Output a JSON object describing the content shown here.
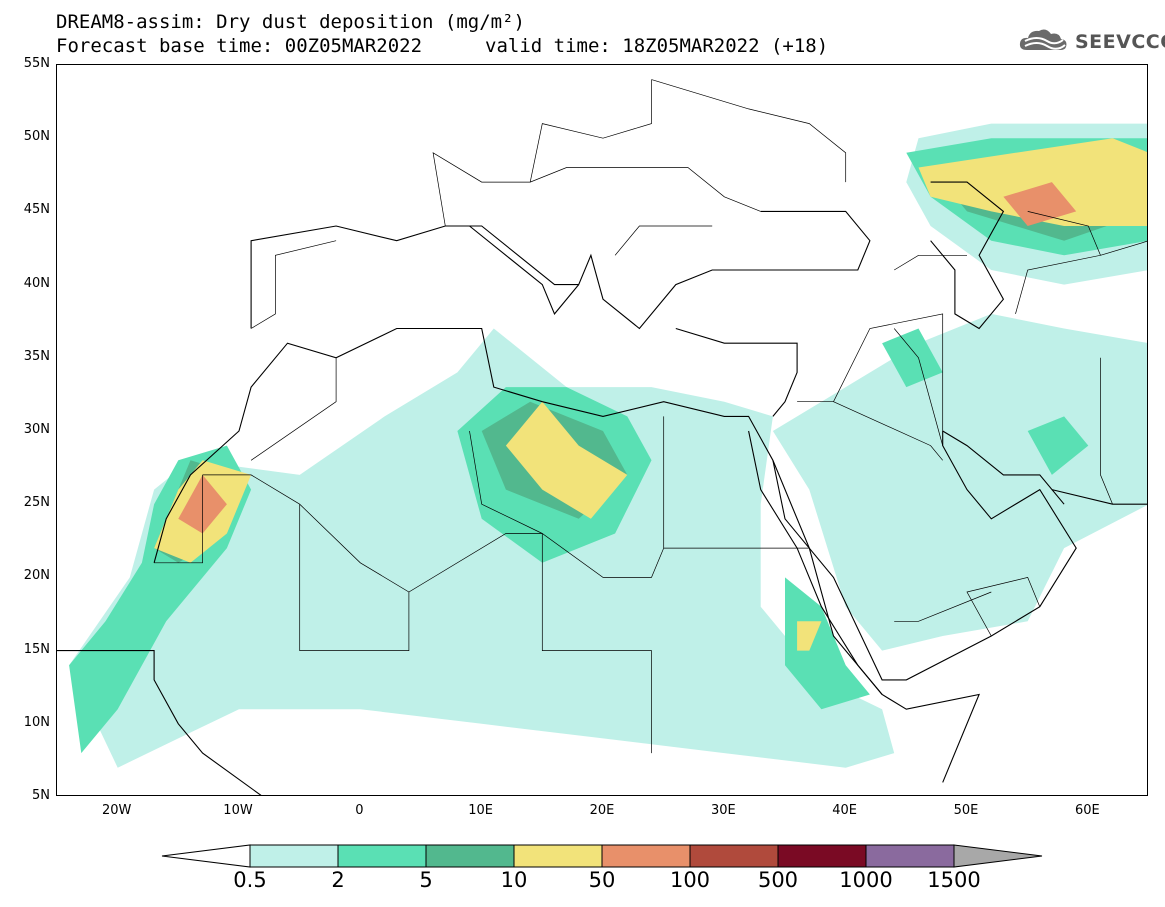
{
  "title": {
    "line1": "DREAM8-assim: Dry dust deposition (mg/m²)",
    "line2": "Forecast base time: 00Z05MAR2022",
    "valid": "valid time: 18Z05MAR2022 (+18)"
  },
  "logo": {
    "text": "SEEVCCC",
    "icon": "cloud-icon"
  },
  "axes": {
    "lat_labels": [
      "55N",
      "50N",
      "45N",
      "40N",
      "35N",
      "30N",
      "25N",
      "20N",
      "15N",
      "10N",
      "5N"
    ],
    "lat_values": [
      55,
      50,
      45,
      40,
      35,
      30,
      25,
      20,
      15,
      10,
      5
    ],
    "lon_labels": [
      "20W",
      "10W",
      "0",
      "10E",
      "20E",
      "30E",
      "40E",
      "50E",
      "60E"
    ],
    "lon_values": [
      -20,
      -10,
      0,
      10,
      20,
      30,
      40,
      50,
      60
    ],
    "lon_range": [
      -25,
      65
    ],
    "lat_range": [
      5,
      55
    ]
  },
  "colorbar": {
    "labels": [
      "0.5",
      "2",
      "5",
      "10",
      "50",
      "100",
      "500",
      "1000",
      "1500"
    ],
    "colors": [
      "#bff0e8",
      "#5ae0b4",
      "#52b88e",
      "#f2e37a",
      "#e8906a",
      "#b04a3c",
      "#7a0a24",
      "#8a6a9e"
    ],
    "extend_low": "#ffffff",
    "extend_high": "#a8a8a8"
  },
  "deposition_regions": [
    {
      "level": 1,
      "color": "#bff0e8",
      "points": [
        [
          -24,
          14
        ],
        [
          -19,
          20
        ],
        [
          -17,
          26
        ],
        [
          -14,
          28
        ],
        [
          -5,
          27
        ],
        [
          2,
          31
        ],
        [
          8,
          34
        ],
        [
          11,
          37
        ],
        [
          17,
          33
        ],
        [
          24,
          33
        ],
        [
          30,
          32
        ],
        [
          34,
          31
        ],
        [
          33,
          25
        ],
        [
          33,
          18
        ],
        [
          38,
          13
        ],
        [
          43,
          11
        ],
        [
          44,
          8
        ],
        [
          40,
          7
        ],
        [
          30,
          8
        ],
        [
          20,
          9
        ],
        [
          10,
          10
        ],
        [
          0,
          11
        ],
        [
          -10,
          11
        ],
        [
          -15,
          9
        ],
        [
          -20,
          7
        ]
      ]
    },
    {
      "level": 1,
      "color": "#bff0e8",
      "points": [
        [
          34,
          30
        ],
        [
          40,
          33
        ],
        [
          46,
          36
        ],
        [
          52,
          38
        ],
        [
          58,
          37
        ],
        [
          65,
          36
        ],
        [
          65,
          25
        ],
        [
          58,
          22
        ],
        [
          55,
          17
        ],
        [
          48,
          16
        ],
        [
          43,
          15
        ],
        [
          40,
          18
        ],
        [
          37,
          26
        ]
      ]
    },
    {
      "level": 1,
      "color": "#bff0e8",
      "points": [
        [
          46,
          50
        ],
        [
          52,
          51
        ],
        [
          58,
          51
        ],
        [
          65,
          51
        ],
        [
          65,
          41
        ],
        [
          58,
          40
        ],
        [
          52,
          41
        ],
        [
          47,
          44
        ],
        [
          45,
          47
        ]
      ]
    },
    {
      "level": 2,
      "color": "#5ae0b4",
      "points": [
        [
          -24,
          14
        ],
        [
          -21,
          17
        ],
        [
          -18,
          21
        ],
        [
          -17,
          25
        ],
        [
          -15,
          28
        ],
        [
          -11,
          29
        ],
        [
          -9,
          26
        ],
        [
          -11,
          22
        ],
        [
          -16,
          17
        ],
        [
          -20,
          11
        ],
        [
          -23,
          8
        ]
      ]
    },
    {
      "level": 2,
      "color": "#5ae0b4",
      "points": [
        [
          8,
          30
        ],
        [
          12,
          33
        ],
        [
          17,
          33
        ],
        [
          22,
          31
        ],
        [
          24,
          28
        ],
        [
          21,
          23
        ],
        [
          15,
          21
        ],
        [
          10,
          24
        ]
      ]
    },
    {
      "level": 2,
      "color": "#5ae0b4",
      "points": [
        [
          35,
          20
        ],
        [
          38,
          18
        ],
        [
          40,
          14
        ],
        [
          42,
          12
        ],
        [
          38,
          11
        ],
        [
          35,
          14
        ]
      ]
    },
    {
      "level": 2,
      "color": "#5ae0b4",
      "points": [
        [
          45,
          49
        ],
        [
          52,
          50
        ],
        [
          60,
          50
        ],
        [
          65,
          50
        ],
        [
          65,
          43
        ],
        [
          58,
          42
        ],
        [
          52,
          43
        ],
        [
          47,
          46
        ]
      ]
    },
    {
      "level": 2,
      "color": "#5ae0b4",
      "points": [
        [
          55,
          30
        ],
        [
          58,
          31
        ],
        [
          60,
          29
        ],
        [
          57,
          27
        ]
      ]
    },
    {
      "level": 2,
      "color": "#5ae0b4",
      "points": [
        [
          43,
          36
        ],
        [
          46,
          37
        ],
        [
          48,
          34
        ],
        [
          45,
          33
        ]
      ]
    },
    {
      "level": 3,
      "color": "#52b88e",
      "points": [
        [
          -17,
          22
        ],
        [
          -14,
          28
        ],
        [
          -10,
          27
        ],
        [
          -11,
          23
        ],
        [
          -15,
          21
        ]
      ]
    },
    {
      "level": 3,
      "color": "#52b88e",
      "points": [
        [
          10,
          30
        ],
        [
          14,
          32
        ],
        [
          20,
          30
        ],
        [
          22,
          27
        ],
        [
          18,
          24
        ],
        [
          12,
          26
        ]
      ]
    },
    {
      "level": 3,
      "color": "#52b88e",
      "points": [
        [
          47,
          48
        ],
        [
          55,
          49
        ],
        [
          62,
          49
        ],
        [
          65,
          48
        ],
        [
          65,
          45
        ],
        [
          58,
          43
        ],
        [
          50,
          45
        ]
      ]
    },
    {
      "level": 4,
      "color": "#f2e37a",
      "points": [
        [
          -17,
          22
        ],
        [
          -15,
          26
        ],
        [
          -13,
          28
        ],
        [
          -9,
          27
        ],
        [
          -11,
          23
        ],
        [
          -14,
          21
        ]
      ]
    },
    {
      "level": 4,
      "color": "#f2e37a",
      "points": [
        [
          13,
          30
        ],
        [
          15,
          32
        ],
        [
          18,
          29
        ],
        [
          22,
          27
        ],
        [
          19,
          24
        ],
        [
          15,
          26
        ],
        [
          12,
          29
        ]
      ]
    },
    {
      "level": 4,
      "color": "#f2e37a",
      "points": [
        [
          36,
          17
        ],
        [
          38,
          17
        ],
        [
          37,
          15
        ],
        [
          36,
          15
        ]
      ]
    },
    {
      "level": 4,
      "color": "#f2e37a",
      "points": [
        [
          46,
          48
        ],
        [
          54,
          49
        ],
        [
          62,
          50
        ],
        [
          65,
          49
        ],
        [
          65,
          44
        ],
        [
          58,
          44
        ],
        [
          52,
          45
        ],
        [
          47,
          46
        ]
      ]
    },
    {
      "level": 5,
      "color": "#e8906a",
      "points": [
        [
          -15,
          24
        ],
        [
          -13,
          27
        ],
        [
          -11,
          25
        ],
        [
          -13,
          23
        ]
      ]
    },
    {
      "level": 5,
      "color": "#e8906a",
      "points": [
        [
          53,
          46
        ],
        [
          57,
          47
        ],
        [
          59,
          45
        ],
        [
          55,
          44
        ]
      ]
    }
  ],
  "coastlines": [
    {
      "name": "africa-west-coast",
      "points": [
        [
          -17,
          21
        ],
        [
          -16,
          24
        ],
        [
          -14,
          27
        ],
        [
          -10,
          30
        ],
        [
          -9,
          33
        ],
        [
          -6,
          36
        ],
        [
          -2,
          35
        ],
        [
          3,
          37
        ],
        [
          10,
          37
        ],
        [
          11,
          33
        ],
        [
          15,
          32
        ],
        [
          20,
          31
        ],
        [
          25,
          32
        ],
        [
          30,
          31
        ],
        [
          32,
          31
        ],
        [
          34,
          28
        ],
        [
          37,
          22
        ],
        [
          39,
          16
        ],
        [
          43,
          12
        ],
        [
          45,
          11
        ],
        [
          51,
          12
        ],
        [
          48,
          6
        ]
      ]
    },
    {
      "name": "africa-gulf-guinea",
      "points": [
        [
          -25,
          15
        ],
        [
          -17,
          15
        ],
        [
          -17,
          13
        ],
        [
          -15,
          10
        ],
        [
          -13,
          8
        ],
        [
          -8,
          5
        ]
      ]
    },
    {
      "name": "arabia",
      "points": [
        [
          34,
          28
        ],
        [
          35,
          24
        ],
        [
          39,
          20
        ],
        [
          43,
          13
        ],
        [
          45,
          13
        ],
        [
          52,
          16
        ],
        [
          56,
          18
        ],
        [
          59,
          22
        ],
        [
          56,
          26
        ],
        [
          52,
          24
        ],
        [
          50,
          26
        ],
        [
          48,
          29
        ],
        [
          48,
          30
        ]
      ]
    },
    {
      "name": "europe-south",
      "points": [
        [
          -9,
          37
        ],
        [
          -9,
          43
        ],
        [
          -2,
          44
        ],
        [
          3,
          43
        ],
        [
          7,
          44
        ],
        [
          10,
          44
        ],
        [
          13,
          42
        ],
        [
          16,
          40
        ],
        [
          18,
          40
        ],
        [
          19,
          42
        ],
        [
          20,
          39
        ],
        [
          23,
          37
        ],
        [
          26,
          40
        ],
        [
          29,
          41
        ],
        [
          36,
          41
        ],
        [
          41,
          41
        ],
        [
          42,
          43
        ],
        [
          40,
          45
        ],
        [
          36,
          45
        ],
        [
          33,
          45
        ]
      ]
    },
    {
      "name": "italy",
      "points": [
        [
          9,
          44
        ],
        [
          12,
          42
        ],
        [
          15,
          40
        ],
        [
          16,
          38
        ],
        [
          18,
          40
        ]
      ]
    },
    {
      "name": "levant-turkey",
      "points": [
        [
          26,
          37
        ],
        [
          30,
          36
        ],
        [
          36,
          36
        ],
        [
          36,
          34
        ],
        [
          35,
          32
        ],
        [
          34,
          31
        ]
      ]
    },
    {
      "name": "caspian",
      "points": [
        [
          47,
          47
        ],
        [
          50,
          47
        ],
        [
          53,
          45
        ],
        [
          51,
          42
        ],
        [
          53,
          39
        ],
        [
          51,
          37
        ],
        [
          49,
          38
        ],
        [
          49,
          41
        ],
        [
          47,
          43
        ]
      ]
    },
    {
      "name": "red-sea-west",
      "points": [
        [
          32,
          30
        ],
        [
          33,
          26
        ],
        [
          36,
          22
        ],
        [
          38,
          18
        ],
        [
          41,
          14
        ],
        [
          43,
          12
        ]
      ]
    },
    {
      "name": "persian-gulf",
      "points": [
        [
          48,
          30
        ],
        [
          50,
          29
        ],
        [
          53,
          27
        ],
        [
          56,
          27
        ],
        [
          58,
          25
        ]
      ]
    },
    {
      "name": "iran-coast",
      "points": [
        [
          57,
          26
        ],
        [
          62,
          25
        ],
        [
          65,
          25
        ]
      ]
    }
  ],
  "borders": [
    {
      "points": [
        [
          -13,
          27
        ],
        [
          -9,
          27
        ],
        [
          -5,
          25
        ],
        [
          0,
          21
        ],
        [
          4,
          19
        ],
        [
          12,
          23
        ],
        [
          15,
          23
        ],
        [
          20,
          20
        ],
        [
          24,
          20
        ],
        [
          25,
          22
        ],
        [
          25,
          31
        ]
      ]
    },
    {
      "points": [
        [
          -17,
          21
        ],
        [
          -13,
          21
        ],
        [
          -13,
          27
        ]
      ]
    },
    {
      "points": [
        [
          -5,
          25
        ],
        [
          -5,
          15
        ],
        [
          4,
          15
        ],
        [
          4,
          19
        ]
      ]
    },
    {
      "points": [
        [
          15,
          23
        ],
        [
          15,
          15
        ],
        [
          24,
          15
        ],
        [
          24,
          8
        ]
      ]
    },
    {
      "points": [
        [
          25,
          22
        ],
        [
          37,
          22
        ]
      ]
    },
    {
      "points": [
        [
          9,
          30
        ],
        [
          10,
          25
        ],
        [
          15,
          23
        ]
      ]
    },
    {
      "points": [
        [
          36,
          32
        ],
        [
          39,
          32
        ],
        [
          42,
          37
        ],
        [
          48,
          38
        ],
        [
          48,
          30
        ]
      ]
    },
    {
      "points": [
        [
          39,
          32
        ],
        [
          47,
          29
        ],
        [
          48,
          28
        ]
      ]
    },
    {
      "points": [
        [
          44,
          37
        ],
        [
          46,
          35
        ],
        [
          48,
          29
        ]
      ]
    },
    {
      "points": [
        [
          52,
          16
        ],
        [
          50,
          19
        ],
        [
          55,
          20
        ],
        [
          56,
          18
        ]
      ]
    },
    {
      "points": [
        [
          44,
          17
        ],
        [
          46,
          17
        ],
        [
          52,
          19
        ]
      ]
    },
    {
      "points": [
        [
          7,
          44
        ],
        [
          6,
          49
        ],
        [
          10,
          47
        ],
        [
          14,
          47
        ],
        [
          17,
          48
        ],
        [
          23,
          48
        ],
        [
          27,
          48
        ],
        [
          30,
          46
        ],
        [
          33,
          45
        ]
      ]
    },
    {
      "points": [
        [
          14,
          47
        ],
        [
          15,
          51
        ],
        [
          20,
          50
        ],
        [
          24,
          51
        ],
        [
          24,
          54
        ]
      ]
    },
    {
      "points": [
        [
          24,
          54
        ],
        [
          32,
          52
        ],
        [
          37,
          51
        ],
        [
          40,
          49
        ],
        [
          40,
          47
        ]
      ]
    },
    {
      "points": [
        [
          21,
          42
        ],
        [
          23,
          44
        ],
        [
          26,
          44
        ],
        [
          29,
          44
        ]
      ]
    },
    {
      "points": [
        [
          44,
          41
        ],
        [
          46,
          42
        ],
        [
          50,
          42
        ]
      ]
    },
    {
      "points": [
        [
          55,
          45
        ],
        [
          60,
          44
        ],
        [
          61,
          42
        ],
        [
          55,
          41
        ],
        [
          54,
          38
        ]
      ]
    },
    {
      "points": [
        [
          61,
          42
        ],
        [
          65,
          43
        ]
      ]
    },
    {
      "points": [
        [
          61,
          35
        ],
        [
          61,
          27
        ],
        [
          62,
          25
        ]
      ]
    },
    {
      "points": [
        [
          -2,
          35
        ],
        [
          -2,
          32
        ],
        [
          -9,
          28
        ]
      ]
    },
    {
      "points": [
        [
          -9,
          37
        ],
        [
          -7,
          38
        ],
        [
          -7,
          42
        ],
        [
          -2,
          43
        ]
      ]
    }
  ]
}
